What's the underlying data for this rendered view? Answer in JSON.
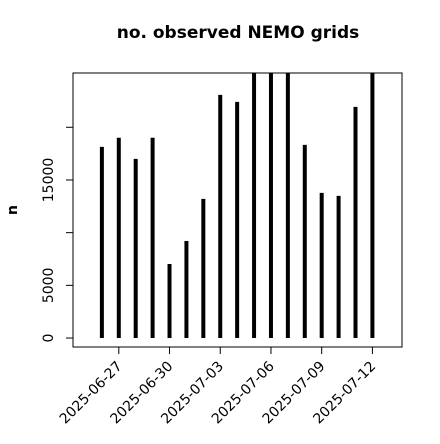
{
  "chart_data": {
    "type": "bar",
    "title": "no. observed NEMO grids",
    "ylabel": "n",
    "x": [
      "2025-06-26",
      "2025-06-27",
      "2025-06-28",
      "2025-06-29",
      "2025-06-30",
      "2025-07-01",
      "2025-07-02",
      "2025-07-03",
      "2025-07-04",
      "2025-07-05",
      "2025-07-06",
      "2025-07-07",
      "2025-07-08",
      "2025-07-09",
      "2025-07-10",
      "2025-07-11",
      "2025-07-12"
    ],
    "values": [
      18140,
      19000,
      17000,
      19000,
      7030,
      9210,
      13200,
      23080,
      22410,
      26000,
      26000,
      26000,
      18330,
      13770,
      13490,
      21940,
      26000
    ],
    "color": "#000000",
    "xlim": [
      "2025-06-24T07:00:00Z",
      "2025-07-13T18:00:00Z"
    ],
    "xticks": [
      "2025-06-27",
      "2025-06-30",
      "2025-07-03",
      "2025-07-06",
      "2025-07-09",
      "2025-07-12"
    ],
    "ylim": [
      -850,
      25150
    ],
    "yticks": [
      0,
      5000,
      {
        "value": 10000,
        "label": null
      },
      15000,
      {
        "value": 20000,
        "label": null
      }
    ]
  }
}
